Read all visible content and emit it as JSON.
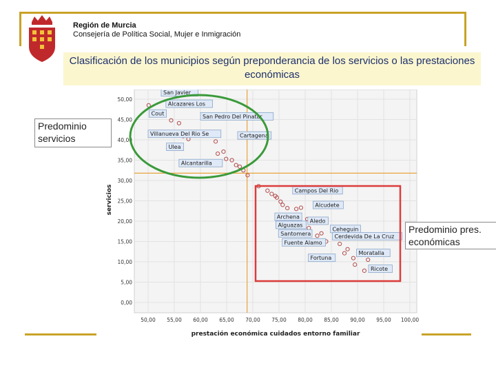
{
  "header": {
    "org": "Región de Murcia",
    "dept": "Consejería de Política Social, Mujer e Inmigración"
  },
  "title": "Clasificación de los municipios según preponderancia de los servicios o las prestaciones económicas",
  "callouts": {
    "services": "Predominio servicios",
    "economic": "Predominio pres. económicas"
  },
  "colors": {
    "gold": "#c9a227",
    "title_bg": "#fcf6cf",
    "title_text": "#1b2f6b",
    "point": "#b24a4a",
    "ref_line": "#e8a33a",
    "green_oval": "#3a9a3a",
    "red_box": "#dd3b3b",
    "plot_bg": "#f4f4f4",
    "label_bg": "#dfe9f7",
    "label_border": "#8aa6c8"
  },
  "chart_data": {
    "type": "scatter",
    "xlabel": "prestación económica cuidados entorno familiar",
    "ylabel": "servicios",
    "xlim": [
      50,
      100
    ],
    "ylim": [
      0,
      50
    ],
    "xticks": [
      "50,00",
      "55,00",
      "60,00",
      "65,00",
      "70,00",
      "75,00",
      "80,00",
      "85,00",
      "90,00",
      "95,00",
      "100,00"
    ],
    "yticks": [
      "0,00",
      "5,00",
      "10,00",
      "15,00",
      "20,00",
      "25,00",
      "30,00",
      "35,00",
      "40,00",
      "45,00",
      "50,00"
    ],
    "ref_x": 68.9,
    "ref_y": 31.8,
    "points": [
      [
        50.1,
        48.5
      ],
      [
        54.4,
        44.8
      ],
      [
        55.9,
        44.1
      ],
      [
        52.6,
        41.2
      ],
      [
        56.7,
        40.9
      ],
      [
        57.7,
        40.2
      ],
      [
        62.9,
        39.6
      ],
      [
        64.4,
        37.1
      ],
      [
        63.3,
        36.6
      ],
      [
        64.9,
        35.3
      ],
      [
        66.0,
        35.0
      ],
      [
        66.8,
        33.8
      ],
      [
        67.5,
        33.4
      ],
      [
        68.2,
        32.5
      ],
      [
        69.0,
        31.3
      ],
      [
        71.1,
        28.6
      ],
      [
        72.8,
        27.5
      ],
      [
        73.6,
        26.7
      ],
      [
        74.3,
        26.2
      ],
      [
        74.6,
        25.8
      ],
      [
        75.3,
        24.8
      ],
      [
        75.7,
        24.0
      ],
      [
        76.6,
        23.2
      ],
      [
        78.3,
        23.0
      ],
      [
        79.2,
        23.3
      ],
      [
        80.4,
        20.5
      ],
      [
        77.8,
        18.9
      ],
      [
        80.7,
        18.3
      ],
      [
        83.1,
        17.0
      ],
      [
        82.3,
        16.4
      ],
      [
        86.6,
        17.3
      ],
      [
        88.7,
        16.5
      ],
      [
        86.6,
        14.4
      ],
      [
        88.1,
        13.1
      ],
      [
        87.5,
        12.1
      ],
      [
        85.2,
        11.0
      ],
      [
        89.2,
        10.9
      ],
      [
        91.3,
        7.8
      ],
      [
        89.5,
        9.3
      ],
      [
        93.5,
        8.2
      ],
      [
        92.0,
        10.5
      ],
      [
        84.0,
        15.0
      ]
    ],
    "labels": [
      {
        "text": "San Javier",
        "x": 52.5,
        "y": 51.6
      },
      {
        "text": "Alcazares Los",
        "x": 53.4,
        "y": 48.8
      },
      {
        "text": "Cout",
        "x": 50.2,
        "y": 46.4
      },
      {
        "text": "San Pedro Del Pinatar",
        "x": 60.0,
        "y": 45.7
      },
      {
        "text": "Villanueva Del Rio Se",
        "x": 50.0,
        "y": 41.4
      },
      {
        "text": "Cartagena",
        "x": 67.1,
        "y": 41.0
      },
      {
        "text": "Ulea",
        "x": 53.5,
        "y": 38.2
      },
      {
        "text": "Alcantarilla",
        "x": 55.9,
        "y": 34.2
      },
      {
        "text": "Campos Del Rio",
        "x": 77.6,
        "y": 27.5
      },
      {
        "text": "Alcudete",
        "x": 81.5,
        "y": 23.9
      },
      {
        "text": "Archena",
        "x": 74.2,
        "y": 21.0
      },
      {
        "text": "Aledo",
        "x": 80.5,
        "y": 20.0
      },
      {
        "text": "Alguazas",
        "x": 74.4,
        "y": 19.0
      },
      {
        "text": "Ceheguin",
        "x": 84.8,
        "y": 18.0
      },
      {
        "text": "Santomera",
        "x": 74.9,
        "y": 16.9
      },
      {
        "text": "Cerdevida De La Cruz",
        "x": 85.2,
        "y": 16.2
      },
      {
        "text": "Fuente Alamo",
        "x": 75.6,
        "y": 14.7
      },
      {
        "text": "Moratalla",
        "x": 89.8,
        "y": 12.1
      },
      {
        "text": "Fortuna",
        "x": 80.6,
        "y": 10.9
      },
      {
        "text": "Ricote",
        "x": 92.1,
        "y": 8.2
      }
    ]
  }
}
